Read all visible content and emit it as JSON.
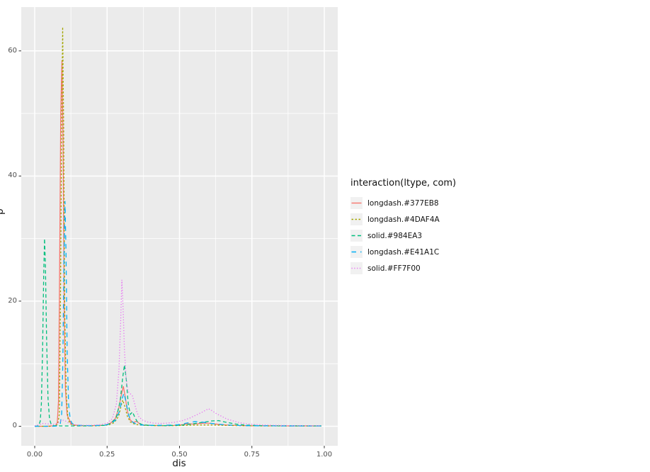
{
  "chart_data": {
    "type": "line",
    "title": "",
    "xlabel": "dis",
    "ylabel": "p",
    "legend_title": "interaction(ltype, com)",
    "legend_position": "right",
    "grid": "on",
    "panel_background": "#EBEBEB",
    "gridline_color": "#FFFFFF",
    "tick_color": "#333333",
    "tick_label_color": "#4D4D4D",
    "legend_key_fill": "#F1F1F1",
    "xlim": [
      -0.0465,
      1.0465
    ],
    "ylim": [
      -3.12,
      67.0
    ],
    "x_ticks": [
      {
        "value": 0.0,
        "label": "0.00"
      },
      {
        "value": 0.25,
        "label": "0.25"
      },
      {
        "value": 0.5,
        "label": "0.50"
      },
      {
        "value": 0.75,
        "label": "0.75"
      },
      {
        "value": 1.0,
        "label": "1.00"
      }
    ],
    "y_ticks": [
      {
        "value": 0,
        "label": "0"
      },
      {
        "value": 20,
        "label": "20"
      },
      {
        "value": 40,
        "label": "40"
      },
      {
        "value": 60,
        "label": "60"
      }
    ],
    "x_minor": [
      0.125,
      0.375,
      0.625,
      0.875
    ],
    "y_minor": [
      10,
      30,
      50
    ],
    "series": [
      {
        "label": "longdash.#377EB8",
        "color": "#F8766D",
        "linetype": "solid",
        "dash": "",
        "points": [
          [
            0.0,
            0
          ],
          [
            0.04,
            0
          ],
          [
            0.06,
            0.05
          ],
          [
            0.072,
            0.1
          ],
          [
            0.078,
            0.6
          ],
          [
            0.082,
            4
          ],
          [
            0.086,
            25
          ],
          [
            0.09,
            50
          ],
          [
            0.094,
            58.5
          ],
          [
            0.098,
            45
          ],
          [
            0.102,
            18
          ],
          [
            0.106,
            6
          ],
          [
            0.112,
            1.8
          ],
          [
            0.118,
            1.2
          ],
          [
            0.125,
            0.5
          ],
          [
            0.135,
            0.2
          ],
          [
            0.16,
            0.1
          ],
          [
            0.2,
            0.1
          ],
          [
            0.24,
            0.15
          ],
          [
            0.262,
            0.5
          ],
          [
            0.278,
            1.2
          ],
          [
            0.29,
            2.8
          ],
          [
            0.298,
            4.8
          ],
          [
            0.306,
            6.4
          ],
          [
            0.313,
            4.6
          ],
          [
            0.32,
            2.4
          ],
          [
            0.33,
            1.0
          ],
          [
            0.34,
            0.6
          ],
          [
            0.352,
            0.8
          ],
          [
            0.362,
            0.4
          ],
          [
            0.375,
            0.2
          ],
          [
            0.4,
            0.12
          ],
          [
            0.44,
            0.1
          ],
          [
            0.48,
            0.12
          ],
          [
            0.51,
            0.25
          ],
          [
            0.53,
            0.4
          ],
          [
            0.55,
            0.35
          ],
          [
            0.57,
            0.45
          ],
          [
            0.59,
            0.5
          ],
          [
            0.61,
            0.45
          ],
          [
            0.635,
            0.3
          ],
          [
            0.66,
            0.2
          ],
          [
            0.7,
            0.12
          ],
          [
            0.75,
            0.08
          ],
          [
            0.8,
            0.06
          ],
          [
            0.9,
            0.05
          ],
          [
            0.99,
            0.05
          ]
        ]
      },
      {
        "label": "longdash.#4DAF4A",
        "color": "#A3A500",
        "linetype": "short-dash",
        "dash": "2.5 2.5",
        "points": [
          [
            0.0,
            0
          ],
          [
            0.05,
            0
          ],
          [
            0.07,
            0.05
          ],
          [
            0.08,
            0.3
          ],
          [
            0.085,
            2
          ],
          [
            0.089,
            20
          ],
          [
            0.093,
            48
          ],
          [
            0.0965,
            63.8
          ],
          [
            0.1,
            48
          ],
          [
            0.104,
            18
          ],
          [
            0.109,
            5
          ],
          [
            0.115,
            1.2
          ],
          [
            0.122,
            0.4
          ],
          [
            0.135,
            0.15
          ],
          [
            0.17,
            0.08
          ],
          [
            0.22,
            0.08
          ],
          [
            0.255,
            0.2
          ],
          [
            0.275,
            0.6
          ],
          [
            0.29,
            1.6
          ],
          [
            0.298,
            3.2
          ],
          [
            0.304,
            4.2
          ],
          [
            0.311,
            3.2
          ],
          [
            0.32,
            1.6
          ],
          [
            0.33,
            0.7
          ],
          [
            0.342,
            0.4
          ],
          [
            0.36,
            0.2
          ],
          [
            0.39,
            0.12
          ],
          [
            0.43,
            0.1
          ],
          [
            0.48,
            0.1
          ],
          [
            0.53,
            0.15
          ],
          [
            0.57,
            0.2
          ],
          [
            0.61,
            0.2
          ],
          [
            0.65,
            0.15
          ],
          [
            0.7,
            0.1
          ],
          [
            0.76,
            0.06
          ],
          [
            0.85,
            0.05
          ],
          [
            0.99,
            0.05
          ]
        ]
      },
      {
        "label": "solid.#984EA3",
        "color": "#00BF7D",
        "linetype": "dash",
        "dash": "5 3.5",
        "points": [
          [
            0.0,
            0
          ],
          [
            0.008,
            0.02
          ],
          [
            0.014,
            0.15
          ],
          [
            0.019,
            0.8
          ],
          [
            0.023,
            3.5
          ],
          [
            0.027,
            12
          ],
          [
            0.031,
            24
          ],
          [
            0.034,
            30
          ],
          [
            0.037,
            26
          ],
          [
            0.041,
            14
          ],
          [
            0.046,
            4.5
          ],
          [
            0.051,
            1.2
          ],
          [
            0.057,
            0.3
          ],
          [
            0.065,
            0.1
          ],
          [
            0.09,
            0.05
          ],
          [
            0.14,
            0.05
          ],
          [
            0.2,
            0.06
          ],
          [
            0.245,
            0.15
          ],
          [
            0.265,
            0.5
          ],
          [
            0.282,
            1.4
          ],
          [
            0.295,
            4
          ],
          [
            0.304,
            7.8
          ],
          [
            0.31,
            9.8
          ],
          [
            0.316,
            7.5
          ],
          [
            0.323,
            3.6
          ],
          [
            0.33,
            1.9
          ],
          [
            0.338,
            2.3
          ],
          [
            0.346,
            1.4
          ],
          [
            0.356,
            0.6
          ],
          [
            0.372,
            0.25
          ],
          [
            0.4,
            0.12
          ],
          [
            0.45,
            0.1
          ],
          [
            0.5,
            0.15
          ],
          [
            0.54,
            0.35
          ],
          [
            0.575,
            0.6
          ],
          [
            0.61,
            0.85
          ],
          [
            0.635,
            0.9
          ],
          [
            0.66,
            0.65
          ],
          [
            0.695,
            0.35
          ],
          [
            0.73,
            0.18
          ],
          [
            0.78,
            0.1
          ],
          [
            0.85,
            0.06
          ],
          [
            0.99,
            0.05
          ]
        ]
      },
      {
        "label": "longdash.#E41A1C",
        "color": "#00B0F6",
        "linetype": "long-dash",
        "dash": "6.5 6",
        "points": [
          [
            0.0,
            0
          ],
          [
            0.06,
            0
          ],
          [
            0.08,
            0.05
          ],
          [
            0.088,
            0.3
          ],
          [
            0.093,
            2
          ],
          [
            0.097,
            10
          ],
          [
            0.101,
            26
          ],
          [
            0.1045,
            36
          ],
          [
            0.108,
            28
          ],
          [
            0.112,
            12
          ],
          [
            0.117,
            3.5
          ],
          [
            0.123,
            1.0
          ],
          [
            0.13,
            0.4
          ],
          [
            0.145,
            0.15
          ],
          [
            0.19,
            0.1
          ],
          [
            0.24,
            0.15
          ],
          [
            0.262,
            0.4
          ],
          [
            0.28,
            1.0
          ],
          [
            0.293,
            2.4
          ],
          [
            0.302,
            4.4
          ],
          [
            0.308,
            5.3
          ],
          [
            0.315,
            4.0
          ],
          [
            0.324,
            1.8
          ],
          [
            0.334,
            0.8
          ],
          [
            0.348,
            0.4
          ],
          [
            0.368,
            0.2
          ],
          [
            0.4,
            0.15
          ],
          [
            0.45,
            0.15
          ],
          [
            0.495,
            0.25
          ],
          [
            0.525,
            0.5
          ],
          [
            0.553,
            0.75
          ],
          [
            0.575,
            0.7
          ],
          [
            0.6,
            0.5
          ],
          [
            0.63,
            0.35
          ],
          [
            0.665,
            0.2
          ],
          [
            0.705,
            0.12
          ],
          [
            0.76,
            0.08
          ],
          [
            0.83,
            0.06
          ],
          [
            0.99,
            0.05
          ]
        ]
      },
      {
        "label": "solid.#FF7F00",
        "color": "#E76BF3",
        "linetype": "dotted",
        "dash": "1.2 2.6",
        "points": [
          [
            0.0,
            0.08
          ],
          [
            0.015,
            0.25
          ],
          [
            0.028,
            0.45
          ],
          [
            0.042,
            0.4
          ],
          [
            0.058,
            0.3
          ],
          [
            0.072,
            0.35
          ],
          [
            0.085,
            0.7
          ],
          [
            0.096,
            1.0
          ],
          [
            0.106,
            0.85
          ],
          [
            0.118,
            0.5
          ],
          [
            0.135,
            0.25
          ],
          [
            0.16,
            0.15
          ],
          [
            0.195,
            0.15
          ],
          [
            0.225,
            0.25
          ],
          [
            0.25,
            0.5
          ],
          [
            0.268,
            1.2
          ],
          [
            0.282,
            3.5
          ],
          [
            0.291,
            9
          ],
          [
            0.297,
            17
          ],
          [
            0.301,
            23.4
          ],
          [
            0.305,
            19
          ],
          [
            0.31,
            12
          ],
          [
            0.316,
            7.5
          ],
          [
            0.322,
            5.6
          ],
          [
            0.33,
            5.2
          ],
          [
            0.337,
            4.9
          ],
          [
            0.344,
            3.8
          ],
          [
            0.352,
            2.4
          ],
          [
            0.36,
            1.5
          ],
          [
            0.372,
            1.0
          ],
          [
            0.388,
            0.7
          ],
          [
            0.41,
            0.5
          ],
          [
            0.435,
            0.45
          ],
          [
            0.46,
            0.5
          ],
          [
            0.485,
            0.65
          ],
          [
            0.51,
            0.9
          ],
          [
            0.535,
            1.3
          ],
          [
            0.558,
            1.8
          ],
          [
            0.58,
            2.3
          ],
          [
            0.6,
            2.8
          ],
          [
            0.612,
            2.5
          ],
          [
            0.628,
            2.0
          ],
          [
            0.645,
            1.6
          ],
          [
            0.662,
            1.2
          ],
          [
            0.682,
            0.9
          ],
          [
            0.705,
            0.6
          ],
          [
            0.73,
            0.4
          ],
          [
            0.76,
            0.28
          ],
          [
            0.79,
            0.2
          ],
          [
            0.83,
            0.14
          ],
          [
            0.88,
            0.1
          ],
          [
            0.94,
            0.1
          ],
          [
            0.99,
            0.1
          ]
        ]
      }
    ]
  }
}
